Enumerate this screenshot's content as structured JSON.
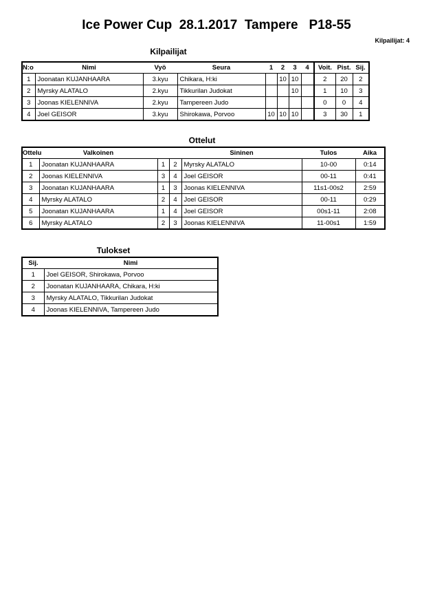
{
  "header": {
    "title": "Ice Power Cup  28.1.2017  Tampere   P18-55",
    "competitor_count": "Kilpailijat: 4"
  },
  "competitors": {
    "heading": "Kilpailijat",
    "columns": [
      "N:o",
      "Nimi",
      "Vyö",
      "Seura",
      "1",
      "2",
      "3",
      "4",
      "Voit.",
      "Pist.",
      "Sij."
    ],
    "rows": [
      [
        "1",
        "Joonatan KUJANHAARA",
        "3.kyu",
        "Chikara, H:ki",
        "",
        "10",
        "10",
        "",
        "2",
        "20",
        "2"
      ],
      [
        "2",
        "Myrsky ALATALO",
        "2.kyu",
        "Tikkurilan Judokat",
        "",
        "",
        "10",
        "",
        "1",
        "10",
        "3"
      ],
      [
        "3",
        "Joonas KIELENNIVA",
        "2.kyu",
        "Tampereen Judo",
        "",
        "",
        "",
        "",
        "0",
        "0",
        "4"
      ],
      [
        "4",
        "Joel GEISOR",
        "3.kyu",
        "Shirokawa, Porvoo",
        "10",
        "10",
        "10",
        "",
        "3",
        "30",
        "1"
      ]
    ]
  },
  "matches": {
    "heading": "Ottelut",
    "columns": [
      "Ottelu",
      "Valkoinen",
      "",
      "",
      "Sininen",
      "Tulos",
      "Aika"
    ],
    "rows": [
      [
        "1",
        "Joonatan KUJANHAARA",
        "1",
        "2",
        "Myrsky ALATALO",
        "10-00",
        "0:14"
      ],
      [
        "2",
        "Joonas KIELENNIVA",
        "3",
        "4",
        "Joel GEISOR",
        "00-11",
        "0:41"
      ],
      [
        "3",
        "Joonatan KUJANHAARA",
        "1",
        "3",
        "Joonas KIELENNIVA",
        "11s1-00s2",
        "2:59"
      ],
      [
        "4",
        "Myrsky ALATALO",
        "2",
        "4",
        "Joel GEISOR",
        "00-11",
        "0:29"
      ],
      [
        "5",
        "Joonatan KUJANHAARA",
        "1",
        "4",
        "Joel GEISOR",
        "00s1-11",
        "2:08"
      ],
      [
        "6",
        "Myrsky ALATALO",
        "2",
        "3",
        "Joonas KIELENNIVA",
        "11-00s1",
        "1:59"
      ]
    ]
  },
  "results": {
    "heading": "Tulokset",
    "columns": [
      "Sij.",
      "Nimi"
    ],
    "rows": [
      [
        "1",
        "Joel GEISOR, Shirokawa, Porvoo"
      ],
      [
        "2",
        "Joonatan KUJANHAARA, Chikara, H:ki"
      ],
      [
        "3",
        "Myrsky ALATALO, Tikkurilan Judokat"
      ],
      [
        "4",
        "Joonas KIELENNIVA, Tampereen Judo"
      ]
    ]
  }
}
